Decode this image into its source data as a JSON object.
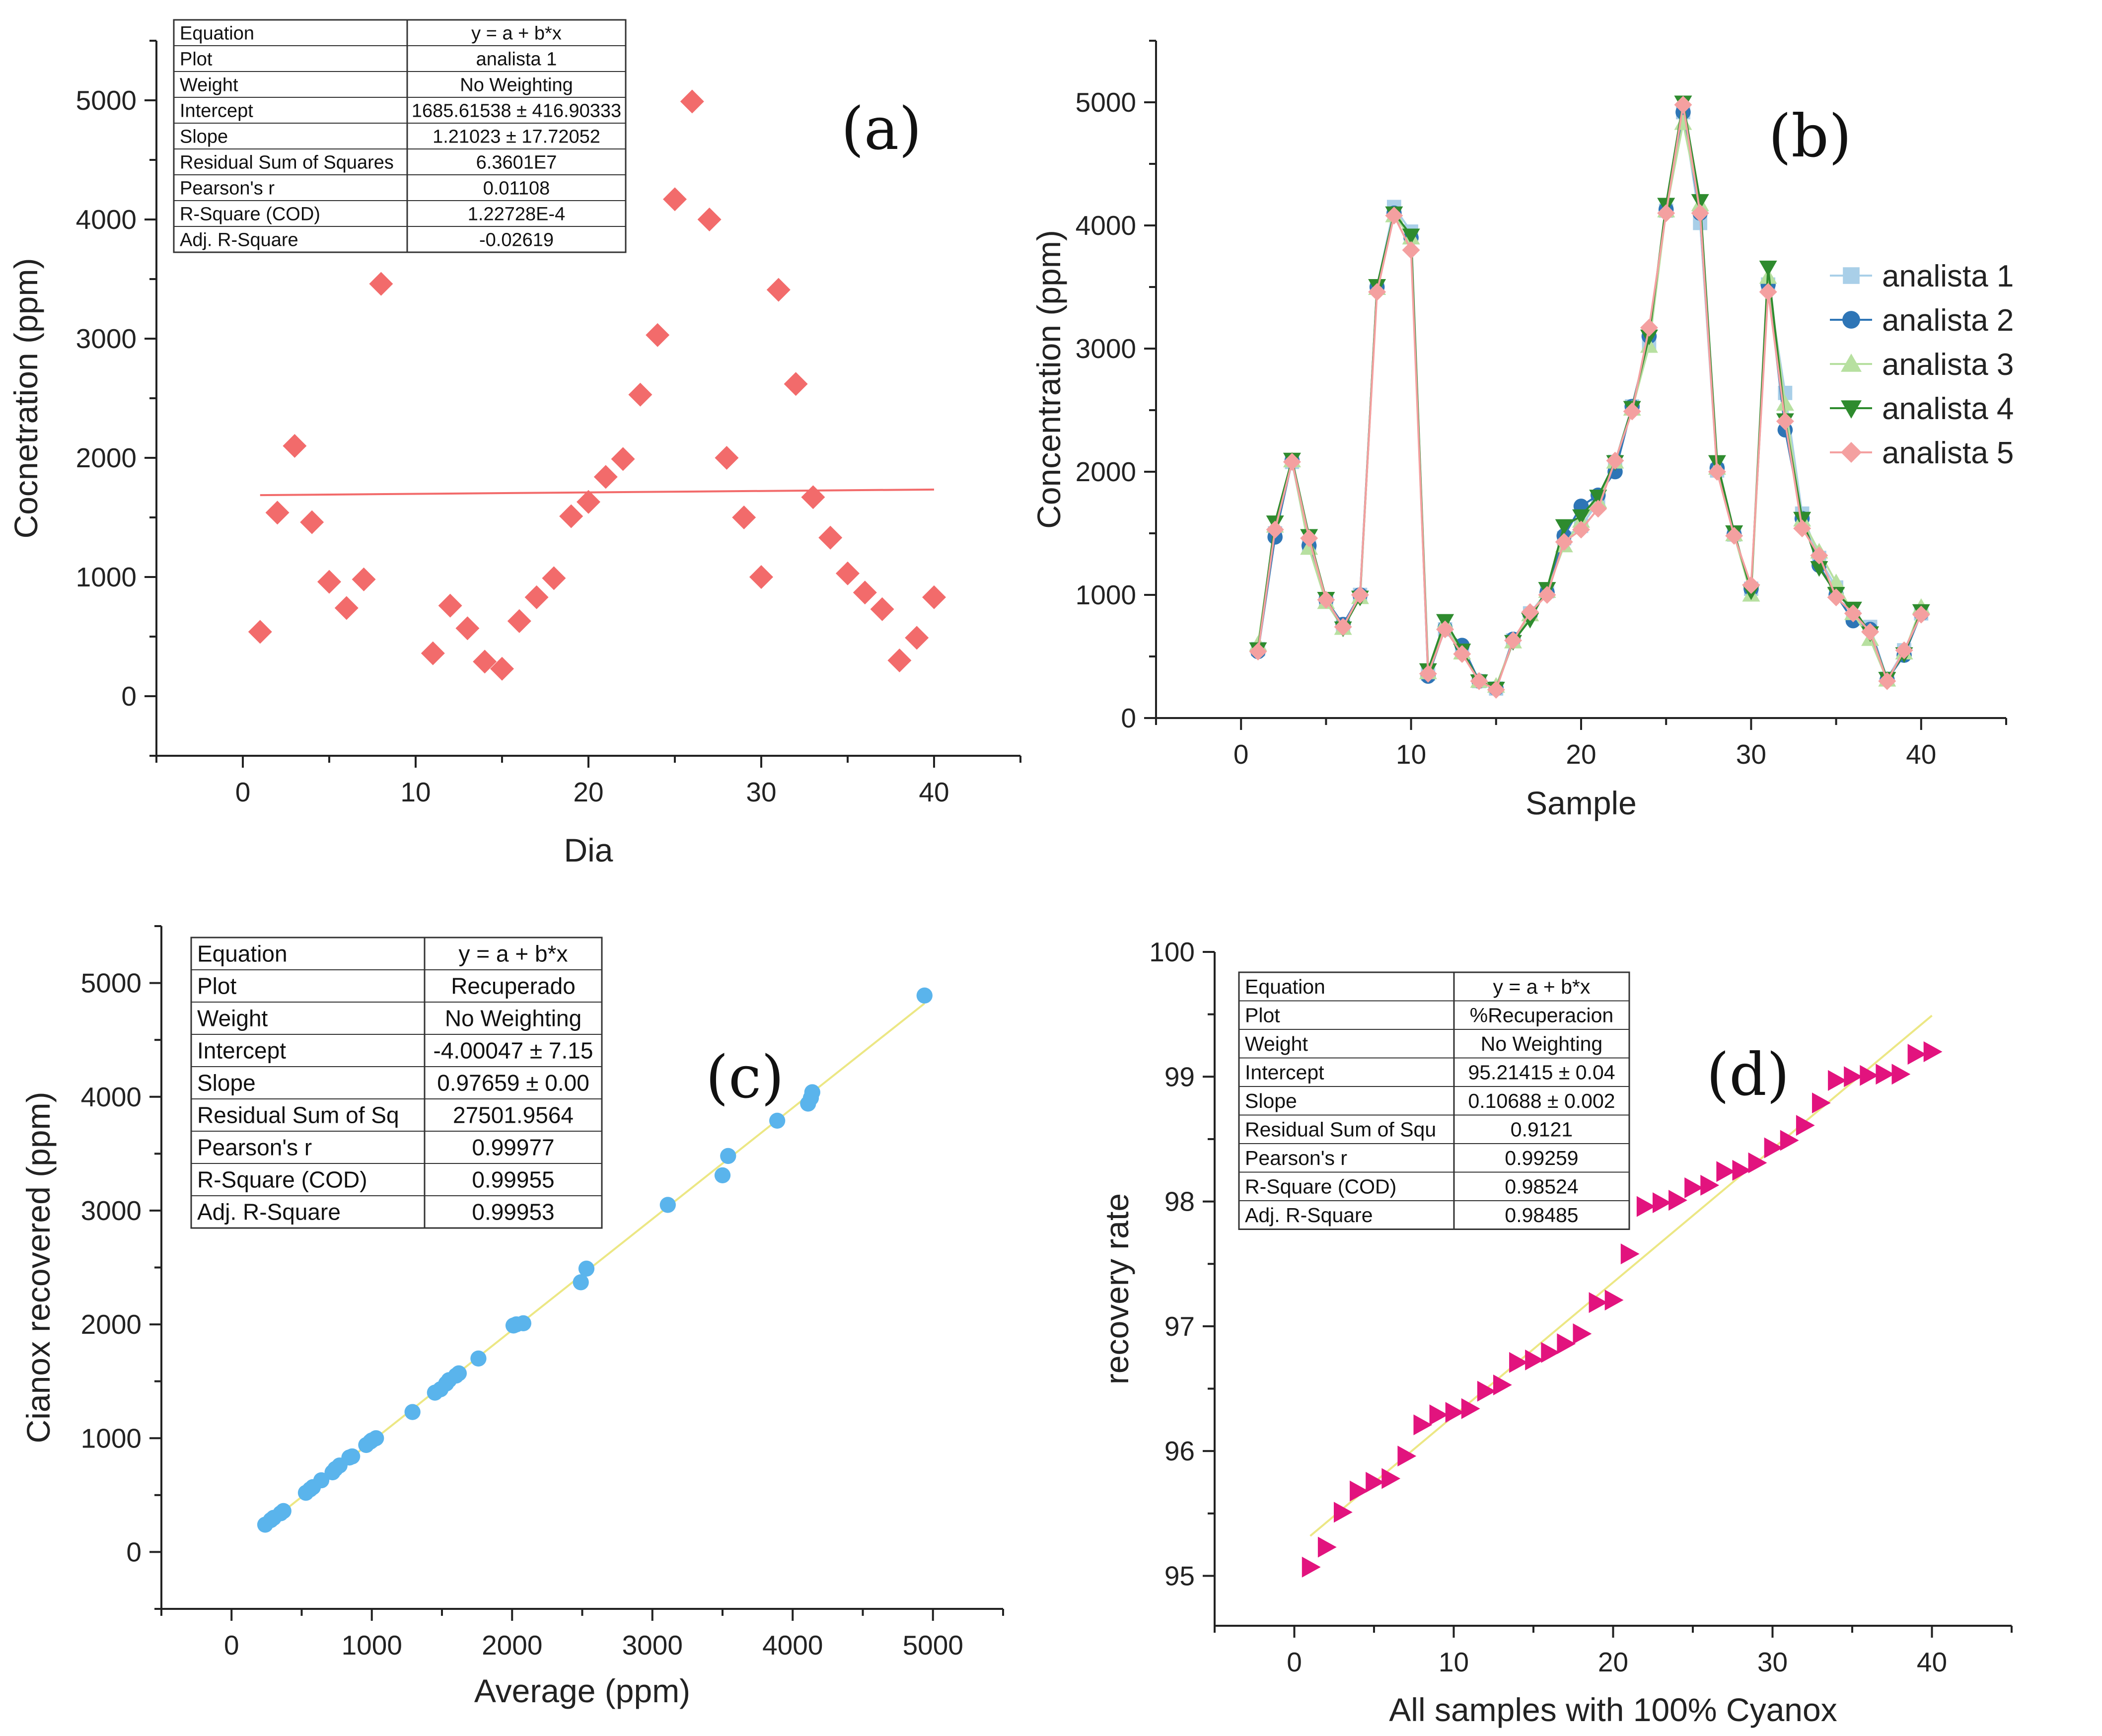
{
  "chart_data": [
    {
      "id": "a",
      "type": "scatter",
      "panel_label": "(a)",
      "xlabel": "Dia",
      "ylabel": "Cocnetration (ppm)",
      "xlim": [
        -5,
        45
      ],
      "ylim": [
        -500,
        5500
      ],
      "xticks": [
        0,
        10,
        20,
        30,
        40
      ],
      "yticks": [
        0,
        1000,
        2000,
        3000,
        4000,
        5000
      ],
      "marker": "diamond",
      "color": "#f26b6b",
      "x": [
        1,
        2,
        3,
        4,
        5,
        6,
        7,
        8,
        11,
        12,
        13,
        14,
        15,
        16,
        17,
        18,
        19,
        20,
        21,
        22,
        23,
        24,
        25,
        26,
        27,
        28,
        29,
        30,
        31,
        32,
        33,
        34,
        35,
        36,
        37,
        38,
        39,
        40
      ],
      "y": [
        540,
        1540,
        2100,
        1460,
        960,
        740,
        980,
        3460,
        360,
        760,
        570,
        290,
        230,
        630,
        830,
        990,
        1510,
        1630,
        1840,
        1990,
        2530,
        3030,
        4170,
        4990,
        4000,
        2000,
        1500,
        1000,
        3410,
        2620,
        1670,
        1330,
        1030,
        870,
        730,
        300,
        490,
        830
      ],
      "fit": {
        "x": [
          1,
          40
        ],
        "y": [
          1686.83,
          1734.02
        ],
        "color": "#f26b6b"
      },
      "stats_table": [
        [
          "Equation",
          "y = a + b*x"
        ],
        [
          "Plot",
          "analista 1"
        ],
        [
          "Weight",
          "No Weighting"
        ],
        [
          "Intercept",
          "1685.61538 ± 416.90333"
        ],
        [
          "Slope",
          "1.21023 ± 17.72052"
        ],
        [
          "Residual Sum of Squares",
          "6.3601E7"
        ],
        [
          "Pearson's r",
          "0.01108"
        ],
        [
          "R-Square (COD)",
          "1.22728E-4"
        ],
        [
          "Adj. R-Square",
          "-0.02619"
        ]
      ]
    },
    {
      "id": "b",
      "type": "line",
      "panel_label": "(b)",
      "xlabel": "Sample",
      "ylabel": "Concentration (ppm)",
      "xlim": [
        -5,
        45
      ],
      "ylim": [
        0,
        5500
      ],
      "xticks": [
        0,
        10,
        20,
        30,
        40
      ],
      "yticks": [
        0,
        1000,
        2000,
        3000,
        4000,
        5000
      ],
      "legend_position": "right",
      "x": [
        1,
        2,
        3,
        4,
        5,
        6,
        7,
        8,
        9,
        10,
        11,
        12,
        13,
        14,
        15,
        16,
        17,
        18,
        19,
        20,
        21,
        22,
        23,
        24,
        25,
        26,
        27,
        28,
        29,
        30,
        31,
        32,
        33,
        34,
        35,
        36,
        37,
        38,
        39,
        40
      ],
      "series": [
        {
          "name": "analista 1",
          "marker": "square",
          "color": "#a9cfe8",
          "values": [
            560,
            1500,
            2080,
            1390,
            950,
            760,
            1000,
            3500,
            4150,
            3950,
            360,
            720,
            560,
            300,
            240,
            630,
            850,
            1030,
            1460,
            1560,
            1750,
            2080,
            2530,
            3050,
            4120,
            4920,
            4020,
            2010,
            1490,
            1050,
            3520,
            2640,
            1660,
            1300,
            1060,
            820,
            740,
            320,
            550,
            850
          ]
        },
        {
          "name": "analista 2",
          "marker": "circle",
          "color": "#2e75b6",
          "values": [
            540,
            1470,
            2090,
            1400,
            960,
            760,
            1000,
            3500,
            4100,
            3900,
            340,
            730,
            590,
            300,
            240,
            640,
            840,
            1020,
            1480,
            1720,
            1810,
            2000,
            2530,
            3100,
            4130,
            4920,
            4100,
            2030,
            1490,
            1050,
            3520,
            2340,
            1620,
            1240,
            1000,
            790,
            720,
            310,
            510,
            850
          ]
        },
        {
          "name": "analista 3",
          "marker": "triangle-up",
          "color": "#b7e0a0",
          "values": [
            600,
            1560,
            2090,
            1380,
            940,
            730,
            980,
            3490,
            4080,
            3900,
            370,
            770,
            530,
            300,
            260,
            620,
            840,
            1030,
            1400,
            1600,
            1760,
            2080,
            2510,
            3020,
            4120,
            4830,
            4170,
            2030,
            1490,
            1000,
            3580,
            2550,
            1610,
            1350,
            1100,
            850,
            640,
            310,
            530,
            900
          ]
        },
        {
          "name": "analista 4",
          "marker": "triangle-down",
          "color": "#2e8b2e",
          "values": [
            560,
            1590,
            2100,
            1480,
            970,
            730,
            980,
            3510,
            4100,
            3920,
            390,
            790,
            550,
            300,
            240,
            620,
            800,
            1050,
            1560,
            1640,
            1800,
            2080,
            2520,
            3100,
            4170,
            5000,
            4200,
            2080,
            1510,
            1030,
            3660,
            2420,
            1620,
            1220,
            1010,
            890,
            690,
            320,
            520,
            870
          ]
        },
        {
          "name": "analista 5",
          "marker": "diamond",
          "color": "#f4a0a0",
          "values": [
            540,
            1530,
            2080,
            1460,
            960,
            740,
            1000,
            3460,
            4080,
            3800,
            360,
            720,
            520,
            300,
            230,
            630,
            860,
            1000,
            1430,
            1530,
            1700,
            2090,
            2490,
            3170,
            4100,
            4980,
            4100,
            2000,
            1480,
            1080,
            3460,
            2410,
            1540,
            1320,
            980,
            850,
            700,
            300,
            550,
            840
          ]
        }
      ]
    },
    {
      "id": "c",
      "type": "scatter",
      "panel_label": "(c)",
      "xlabel": "Average (ppm)",
      "ylabel": "Cianox recovered (ppm)",
      "xlim": [
        -500,
        5500
      ],
      "ylim": [
        -500,
        5500
      ],
      "xticks": [
        0,
        1000,
        2000,
        3000,
        4000,
        5000
      ],
      "yticks": [
        0,
        1000,
        2000,
        3000,
        4000,
        5000
      ],
      "marker": "circle",
      "color": "#5ab4ec",
      "x": [
        240,
        280,
        300,
        350,
        370,
        530,
        560,
        580,
        640,
        720,
        740,
        770,
        840,
        860,
        960,
        990,
        1000,
        1030,
        1290,
        1450,
        1490,
        1530,
        1550,
        1600,
        1620,
        1760,
        2010,
        2030,
        2080,
        2490,
        2530,
        3110,
        3500,
        3540,
        3890,
        4110,
        4130,
        4140,
        4940
      ],
      "y": [
        240,
        280,
        300,
        340,
        360,
        520,
        550,
        570,
        630,
        700,
        730,
        760,
        830,
        840,
        940,
        970,
        980,
        1000,
        1230,
        1400,
        1430,
        1480,
        1510,
        1550,
        1570,
        1700,
        1990,
        2000,
        2010,
        2370,
        2490,
        3050,
        3310,
        3480,
        3790,
        3940,
        3990,
        4040,
        4890
      ],
      "fit": {
        "x": [
          240,
          4940
        ],
        "y": [
          230.38,
          4820.35
        ],
        "color": "#ece784"
      },
      "stats_table": [
        [
          "Equation",
          "y = a + b*x"
        ],
        [
          "Plot",
          "Recuperado"
        ],
        [
          "Weight",
          "No Weighting"
        ],
        [
          "Intercept",
          "-4.00047 ± 7.15"
        ],
        [
          "Slope",
          "0.97659 ± 0.00"
        ],
        [
          "Residual Sum of Sq",
          "27501.9564"
        ],
        [
          "Pearson's r",
          "0.99977"
        ],
        [
          "R-Square (COD)",
          "0.99955"
        ],
        [
          "Adj. R-Square",
          "0.99953"
        ]
      ]
    },
    {
      "id": "d",
      "type": "scatter",
      "panel_label": "(d)",
      "xlabel": "All samples with 100% Cyanox",
      "ylabel": "recovery rate",
      "xlim": [
        -5,
        45
      ],
      "ylim": [
        94.6,
        100
      ],
      "xticks": [
        0,
        10,
        20,
        30,
        40
      ],
      "yticks": [
        95,
        96,
        97,
        98,
        99,
        100
      ],
      "marker": "triangle-right",
      "color": "#e2137e",
      "x": [
        1,
        2,
        3,
        4,
        5,
        6,
        7,
        8,
        9,
        10,
        11,
        12,
        13,
        14,
        15,
        16,
        17,
        18,
        19,
        20,
        21,
        22,
        23,
        24,
        25,
        26,
        27,
        28,
        29,
        30,
        31,
        32,
        33,
        34,
        35,
        36,
        37,
        38,
        39,
        40
      ],
      "y": [
        95.07,
        95.23,
        95.51,
        95.68,
        95.75,
        95.78,
        95.96,
        96.21,
        96.29,
        96.31,
        96.34,
        96.48,
        96.53,
        96.71,
        96.73,
        96.79,
        96.86,
        96.94,
        97.19,
        97.21,
        97.58,
        97.96,
        97.99,
        98.01,
        98.11,
        98.13,
        98.24,
        98.25,
        98.31,
        98.43,
        98.49,
        98.61,
        98.79,
        98.97,
        99.0,
        99.01,
        99.02,
        99.02,
        99.18,
        99.2
      ],
      "fit": {
        "x": [
          1,
          40
        ],
        "y": [
          95.32,
          99.49
        ],
        "color": "#ece784"
      },
      "stats_table": [
        [
          "Equation",
          "y = a + b*x"
        ],
        [
          "Plot",
          "%Recuperacion"
        ],
        [
          "Weight",
          "No Weighting"
        ],
        [
          "Intercept",
          "95.21415 ± 0.04"
        ],
        [
          "Slope",
          "0.10688 ± 0.002"
        ],
        [
          "Residual Sum of Squ",
          "0.9121"
        ],
        [
          "Pearson's r",
          "0.99259"
        ],
        [
          "R-Square (COD)",
          "0.98524"
        ],
        [
          "Adj. R-Square",
          "0.98485"
        ]
      ]
    }
  ]
}
